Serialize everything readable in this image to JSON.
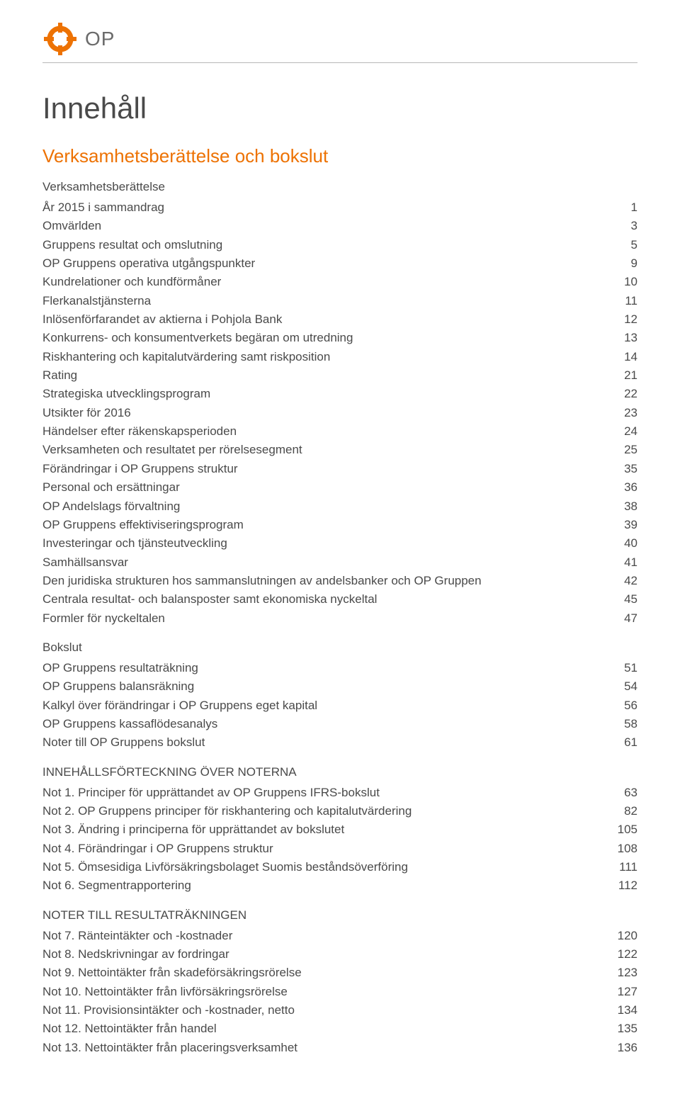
{
  "colors": {
    "accent": "#ed7203",
    "text": "#4a4a4a",
    "rule": "#b8b8b8",
    "logo_text": "#6b6b6b",
    "background": "#ffffff"
  },
  "typography": {
    "title_fontsize": 42,
    "section_fontsize": 26,
    "body_fontsize": 17,
    "font_family": "Arial, Helvetica, sans-serif"
  },
  "header": {
    "logo_text": "OP"
  },
  "title": "Innehåll",
  "section_heading": "Verksamhetsberättelse och bokslut",
  "groups": [
    {
      "heading": "Verksamhetsberättelse",
      "heading_has_page": false
    },
    {
      "label": "År 2015 i sammandrag",
      "page": 1
    },
    {
      "label": "Omvärlden",
      "page": 3
    },
    {
      "label": "Gruppens resultat och omslutning",
      "page": 5
    },
    {
      "label": "OP Gruppens operativa utgångspunkter",
      "page": 9
    },
    {
      "label": "Kundrelationer och kundförmåner",
      "page": 10
    },
    {
      "label": "Flerkanalstjänsterna",
      "page": 11
    },
    {
      "label": "Inlösenförfarandet av aktierna i Pohjola Bank",
      "page": 12
    },
    {
      "label": "Konkurrens- och konsumentverkets begäran om utredning",
      "page": 13
    },
    {
      "label": "Riskhantering och kapitalutvärdering samt riskposition",
      "page": 14
    },
    {
      "label": "Rating",
      "page": 21
    },
    {
      "label": "Strategiska utvecklingsprogram",
      "page": 22
    },
    {
      "label": "Utsikter för 2016",
      "page": 23
    },
    {
      "label": "Händelser efter räkenskapsperioden",
      "page": 24
    },
    {
      "label": "Verksamheten och resultatet per rörelsesegment",
      "page": 25
    },
    {
      "label": "Förändringar i OP Gruppens struktur",
      "page": 35
    },
    {
      "label": "Personal och ersättningar",
      "page": 36
    },
    {
      "label": "OP Andelslags förvaltning",
      "page": 38
    },
    {
      "label": "OP Gruppens effektiviseringsprogram",
      "page": 39
    },
    {
      "label": "Investeringar och tjänsteutveckling",
      "page": 40
    },
    {
      "label": "Samhällsansvar",
      "page": 41
    },
    {
      "label": "Den juridiska strukturen hos sammanslutningen av andelsbanker och OP Gruppen",
      "page": 42
    },
    {
      "label": "Centrala resultat- och balansposter samt ekonomiska nyckeltal",
      "page": 45
    },
    {
      "label": "Formler för nyckeltalen",
      "page": 47
    },
    {
      "heading": "Bokslut",
      "heading_has_page": false
    },
    {
      "label": "OP Gruppens resultaträkning",
      "page": 51
    },
    {
      "label": "OP Gruppens balansräkning",
      "page": 54
    },
    {
      "label": "Kalkyl över förändringar i OP Gruppens eget kapital",
      "page": 56
    },
    {
      "label": "OP Gruppens kassaflödesanalys",
      "page": 58
    },
    {
      "label": "Noter till OP Gruppens bokslut",
      "page": 61
    },
    {
      "heading": "INNEHÅLLSFÖRTECKNING ÖVER NOTERNA",
      "heading_has_page": false
    },
    {
      "label": "Not 1. Principer för upprättandet av OP Gruppens IFRS-bokslut",
      "page": 63
    },
    {
      "label": "Not 2. OP Gruppens principer för riskhantering och kapitalutvärdering",
      "page": 82
    },
    {
      "label": "Not 3. Ändring i principerna för upprättandet av bokslutet",
      "page": 105
    },
    {
      "label": "Not 4. Förändringar i OP Gruppens struktur",
      "page": 108
    },
    {
      "label": "Not 5. Ömsesidiga Livförsäkringsbolaget Suomis beståndsöverföring",
      "page": 111
    },
    {
      "label": "Not 6. Segmentrapportering",
      "page": 112
    },
    {
      "heading": "NOTER TILL RESULTATRÄKNINGEN",
      "heading_has_page": false
    },
    {
      "label": "Not 7. Ränteintäkter och -kostnader",
      "page": 120
    },
    {
      "label": "Not 8. Nedskrivningar av fordringar",
      "page": 122
    },
    {
      "label": "Not 9. Nettointäkter från skadeförsäkringsrörelse",
      "page": 123
    },
    {
      "label": "Not 10. Nettointäkter från livförsäkringsrörelse",
      "page": 127
    },
    {
      "label": "Not 11. Provisionsintäkter och -kostnader, netto",
      "page": 134
    },
    {
      "label": "Not 12. Nettointäkter från handel",
      "page": 135
    },
    {
      "label": "Not 13. Nettointäkter från placeringsverksamhet",
      "page": 136
    }
  ]
}
